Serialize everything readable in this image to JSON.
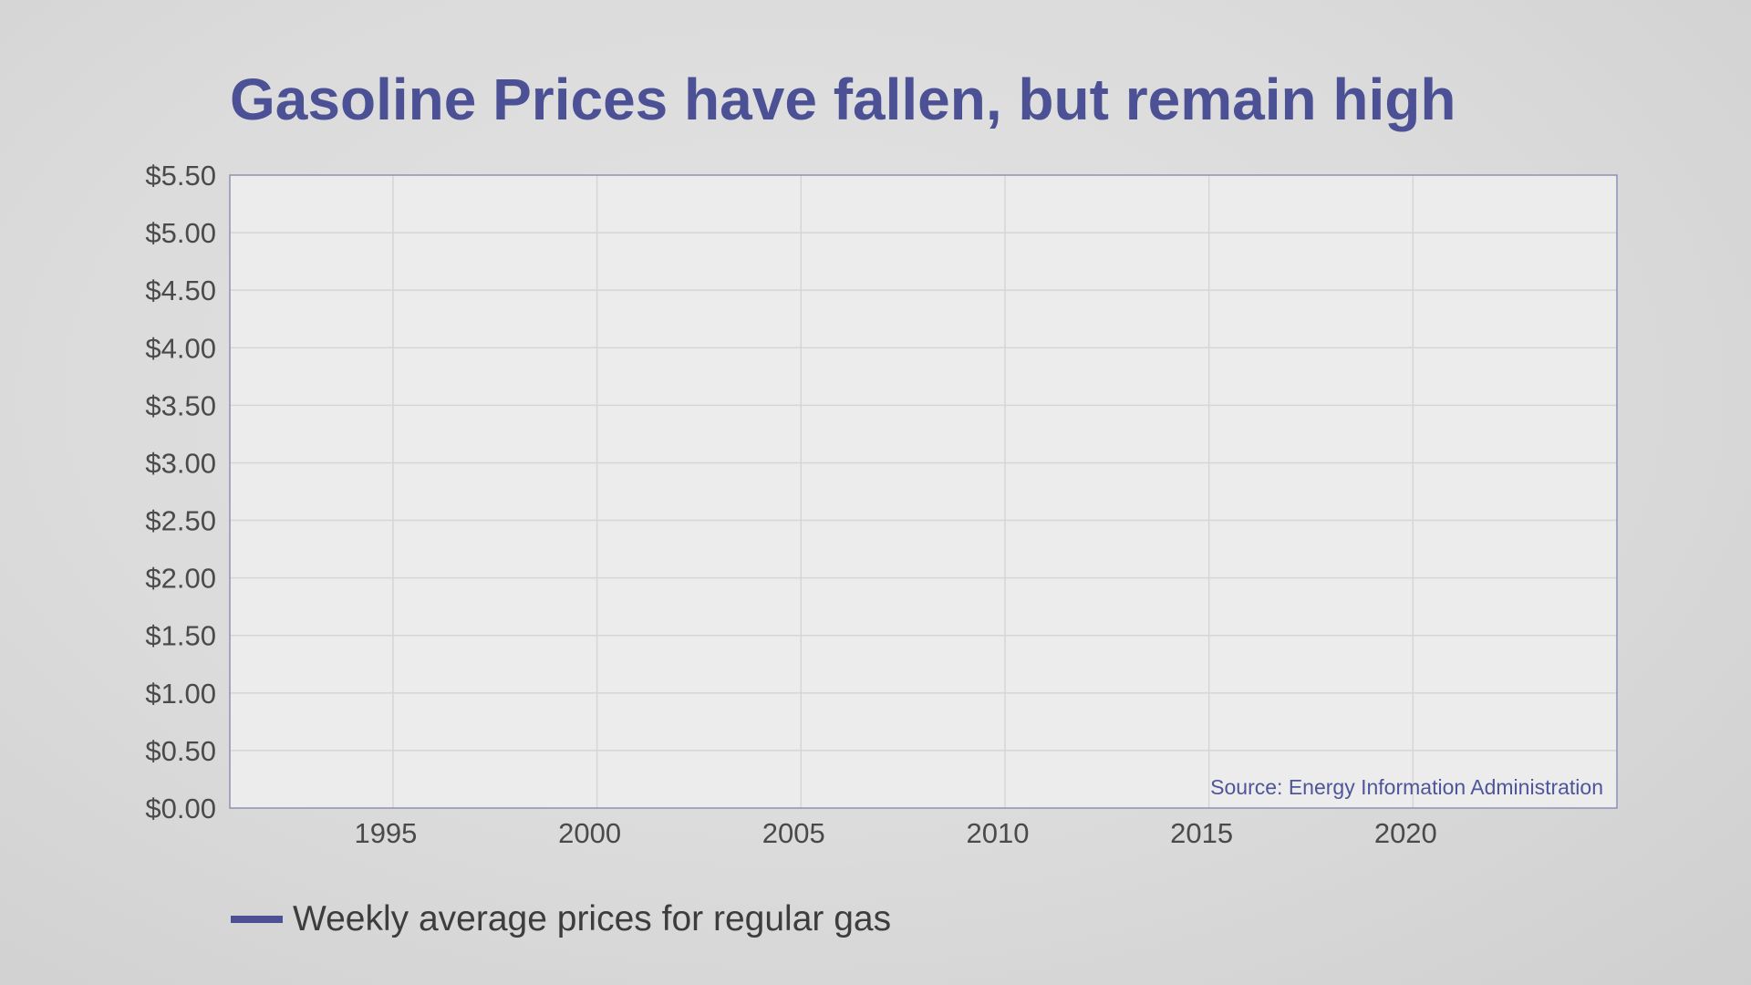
{
  "chart_data": {
    "type": "line",
    "title": "Gasoline Prices have fallen, but remain high",
    "xlabel": "",
    "ylabel": "",
    "xlim": [
      1991,
      2025
    ],
    "ylim": [
      0,
      5.5
    ],
    "x_ticks": [
      1995,
      2000,
      2005,
      2010,
      2015,
      2020
    ],
    "x_tick_labels": [
      "1995",
      "2000",
      "2005",
      "2010",
      "2015",
      "2020"
    ],
    "y_ticks": [
      0,
      0.5,
      1,
      1.5,
      2,
      2.5,
      3,
      3.5,
      4,
      4.5,
      5,
      5.5
    ],
    "y_tick_labels": [
      "$0.00",
      "$0.50",
      "$1.00",
      "$1.50",
      "$2.00",
      "$2.50",
      "$3.00",
      "$3.50",
      "$4.00",
      "$4.50",
      "$5.00",
      "$5.50"
    ],
    "grid": true,
    "legend_position": "bottom-left",
    "series": [
      {
        "name": "Weekly average prices for regular gas",
        "color": "#4b5194",
        "x": [],
        "values": []
      }
    ],
    "annotations": [
      "Source: Energy Information Administration"
    ]
  },
  "colors": {
    "accent": "#4b5194",
    "plot_background": "#ececec",
    "grid": "#d6d6d6"
  }
}
